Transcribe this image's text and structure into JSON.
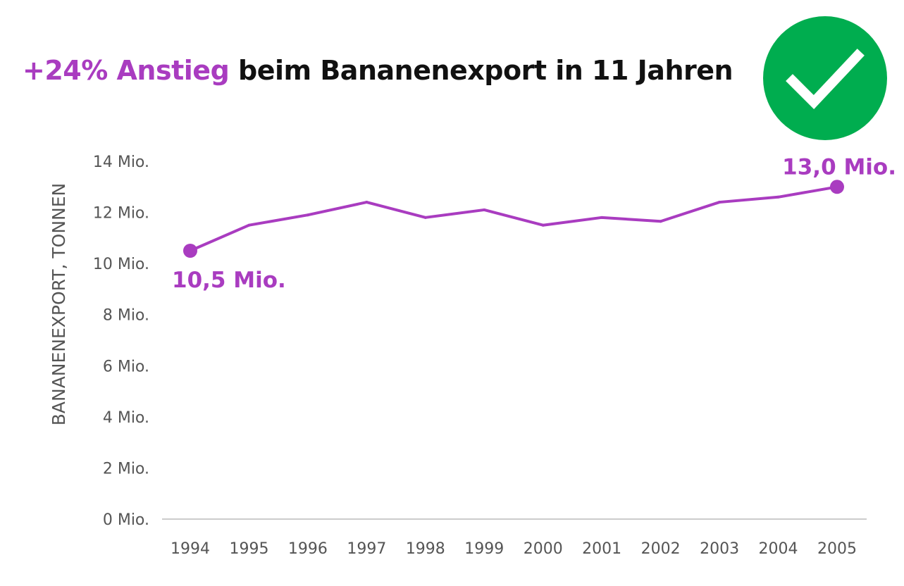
{
  "title": {
    "highlight": "+24% Anstieg",
    "rest": " beim Bananenexport in 11 Jahren"
  },
  "badge_icon": "check-circle-icon",
  "colors": {
    "line": "#a93cc0",
    "badge": "#00ad4f",
    "axis": "#cccccc"
  },
  "chart_data": {
    "type": "line",
    "ylabel": "BANANENEXPORT, TONNEN",
    "xlabel": "",
    "unit_suffix": " Mio.",
    "ylim": [
      0,
      14
    ],
    "yticks": [
      0,
      2,
      4,
      6,
      8,
      10,
      12,
      14
    ],
    "ytick_labels": [
      "0 Mio.",
      "2 Mio.",
      "4 Mio.",
      "6 Mio.",
      "8 Mio.",
      "10 Mio.",
      "12 Mio.",
      "14 Mio."
    ],
    "x": [
      "1994",
      "1995",
      "1996",
      "1997",
      "1998",
      "1999",
      "2000",
      "2001",
      "2002",
      "2003",
      "2004",
      "2005"
    ],
    "values": [
      10.5,
      11.5,
      11.9,
      12.4,
      11.8,
      12.1,
      11.5,
      11.8,
      11.65,
      12.4,
      12.6,
      13.0
    ],
    "annotations": [
      {
        "x": "1994",
        "text": "10,5 Mio."
      },
      {
        "x": "2005",
        "text": "13,0 Mio."
      }
    ],
    "grid": false
  }
}
